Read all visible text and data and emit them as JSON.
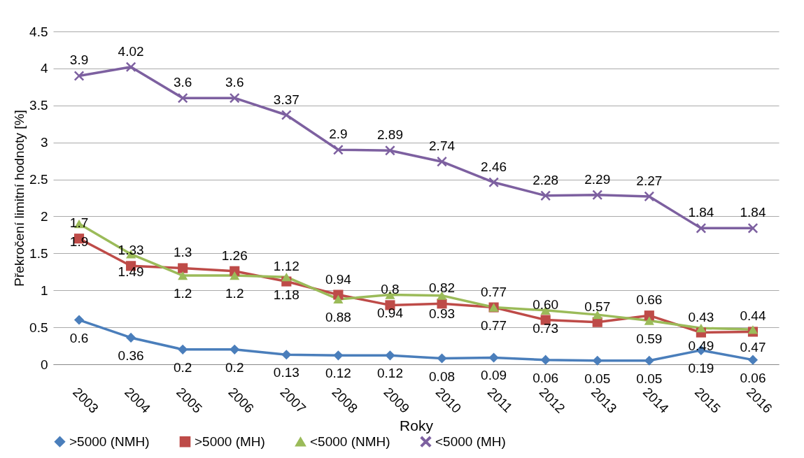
{
  "chart_data": {
    "type": "line",
    "xlabel": "Roky",
    "ylabel": "Překročení limitní hodnoty [%]",
    "categories": [
      "2003",
      "2004",
      "2005",
      "2006",
      "2007",
      "2008",
      "2009",
      "2010",
      "2011",
      "2012",
      "2013",
      "2014",
      "2015",
      "2016"
    ],
    "ylim": [
      0,
      4.5
    ],
    "yticks": [
      0,
      0.5,
      1,
      1.5,
      2,
      2.5,
      3,
      3.5,
      4,
      4.5
    ],
    "grid": "y",
    "legend": "bottom",
    "series": [
      {
        "name": ">5000 (NMH)",
        "color": "#4a7ebb",
        "marker": "diamond",
        "values": [
          0.6,
          0.36,
          0.2,
          0.2,
          0.13,
          0.12,
          0.12,
          0.08,
          0.09,
          0.06,
          0.05,
          0.05,
          0.19,
          0.06
        ],
        "value_labels": [
          "0.6",
          "0.36",
          "0.2",
          "0.2",
          "0.13",
          "0.12",
          "0.12",
          "0.08",
          "0.09",
          "0.06",
          "0.05",
          "0.05",
          "0.19",
          "0.06"
        ]
      },
      {
        "name": ">5000 (MH)",
        "color": "#be4b48",
        "marker": "square",
        "values": [
          1.7,
          1.33,
          1.3,
          1.26,
          1.12,
          0.94,
          0.8,
          0.82,
          0.77,
          0.6,
          0.57,
          0.66,
          0.43,
          0.44
        ],
        "value_labels": [
          "1.7",
          "1.33",
          "1.3",
          "1.26",
          "1.12",
          "0.94",
          "0.8",
          "0.82",
          "0.77",
          "0.60",
          "0.57",
          "0.66",
          "0.43",
          "0.44"
        ]
      },
      {
        "name": "<5000 (NMH)",
        "color": "#9bbb59",
        "marker": "triangle",
        "values": [
          1.9,
          1.49,
          1.2,
          1.2,
          1.18,
          0.88,
          0.94,
          0.93,
          0.77,
          0.73,
          0.67,
          0.59,
          0.49,
          0.47
        ],
        "value_labels": [
          "1.9",
          "1.49",
          "1.2",
          "1.2",
          "1.18",
          "0.88",
          "0.94",
          "0.93",
          "0.77",
          "0.73",
          null,
          "0.59",
          "0.49",
          "0.47"
        ]
      },
      {
        "name": "<5000 (MH)",
        "color": "#7d60a0",
        "marker": "cross",
        "values": [
          3.9,
          4.02,
          3.6,
          3.6,
          3.37,
          2.9,
          2.89,
          2.74,
          2.46,
          2.28,
          2.29,
          2.27,
          1.84,
          1.84
        ],
        "value_labels": [
          "3.9",
          "4.02",
          "3.6",
          "3.6",
          "3.37",
          "2.9",
          "2.89",
          "2.74",
          "2.46",
          "2.28",
          "2.29",
          "2.27",
          "1.84",
          "1.84"
        ]
      }
    ]
  }
}
